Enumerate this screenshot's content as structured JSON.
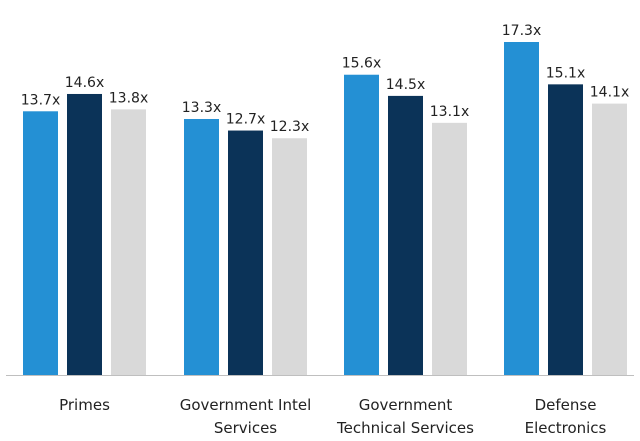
{
  "chart_data": {
    "type": "bar",
    "categories": [
      [
        "Primes"
      ],
      [
        "Government Intel",
        "Services"
      ],
      [
        "Government",
        "Technical Services"
      ],
      [
        "Defense",
        "Electronics"
      ]
    ],
    "series": [
      {
        "values": [
          13.7,
          13.3,
          15.6,
          17.3
        ],
        "labels": [
          "13.7x",
          "13.3x",
          "15.6x",
          "17.3x"
        ]
      },
      {
        "values": [
          14.6,
          12.7,
          14.5,
          15.1
        ],
        "labels": [
          "14.6x",
          "12.7x",
          "14.5x",
          "15.1x"
        ]
      },
      {
        "values": [
          13.8,
          12.3,
          13.1,
          14.1
        ],
        "labels": [
          "13.8x",
          "12.3x",
          "13.1x",
          "14.1x"
        ]
      }
    ],
    "ylim": [
      0,
      17.3
    ],
    "grid": false,
    "legend": "none",
    "colors": [
      "#2490d4",
      "#0b3358",
      "#d9d9d9"
    ],
    "axis_color": "#bfbfbf"
  }
}
